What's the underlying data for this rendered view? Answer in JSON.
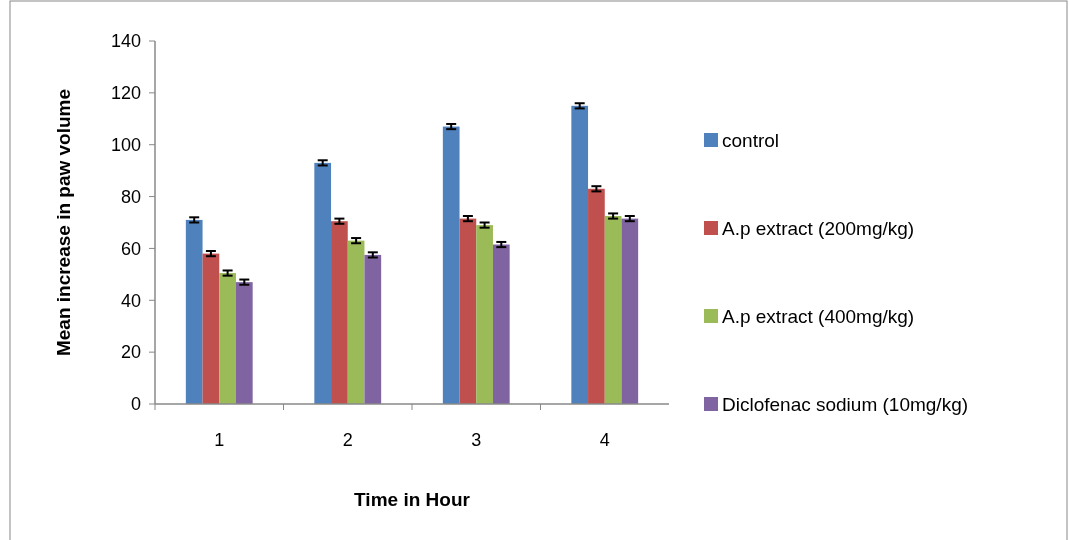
{
  "chart_data": {
    "type": "bar",
    "xlabel": "Time in Hour",
    "ylabel": "Mean increase in paw volume",
    "categories": [
      "1",
      "2",
      "3",
      "4"
    ],
    "series": [
      {
        "name": "control",
        "color": "#4f81bd",
        "values": [
          71,
          93,
          107,
          115
        ],
        "errors": [
          1,
          1,
          1,
          1
        ]
      },
      {
        "name": "A.p extract (200mg/kg)",
        "color": "#c0504d",
        "values": [
          58,
          70.5,
          71.5,
          83
        ],
        "errors": [
          1,
          1,
          1,
          1
        ]
      },
      {
        "name": "A.p extract (400mg/kg)",
        "color": "#9bbb59",
        "values": [
          50.5,
          63,
          69,
          72.5
        ],
        "errors": [
          1,
          1,
          1,
          1
        ]
      },
      {
        "name": "Diclofenac sodium (10mg/kg)",
        "color": "#8064a2",
        "values": [
          47,
          57.5,
          61.5,
          71.5
        ],
        "errors": [
          1,
          1,
          1,
          1
        ]
      }
    ],
    "ylim": [
      0,
      140
    ],
    "yticks": [
      0,
      20,
      40,
      60,
      80,
      100,
      120,
      140
    ],
    "legend": "right",
    "grid": false
  }
}
